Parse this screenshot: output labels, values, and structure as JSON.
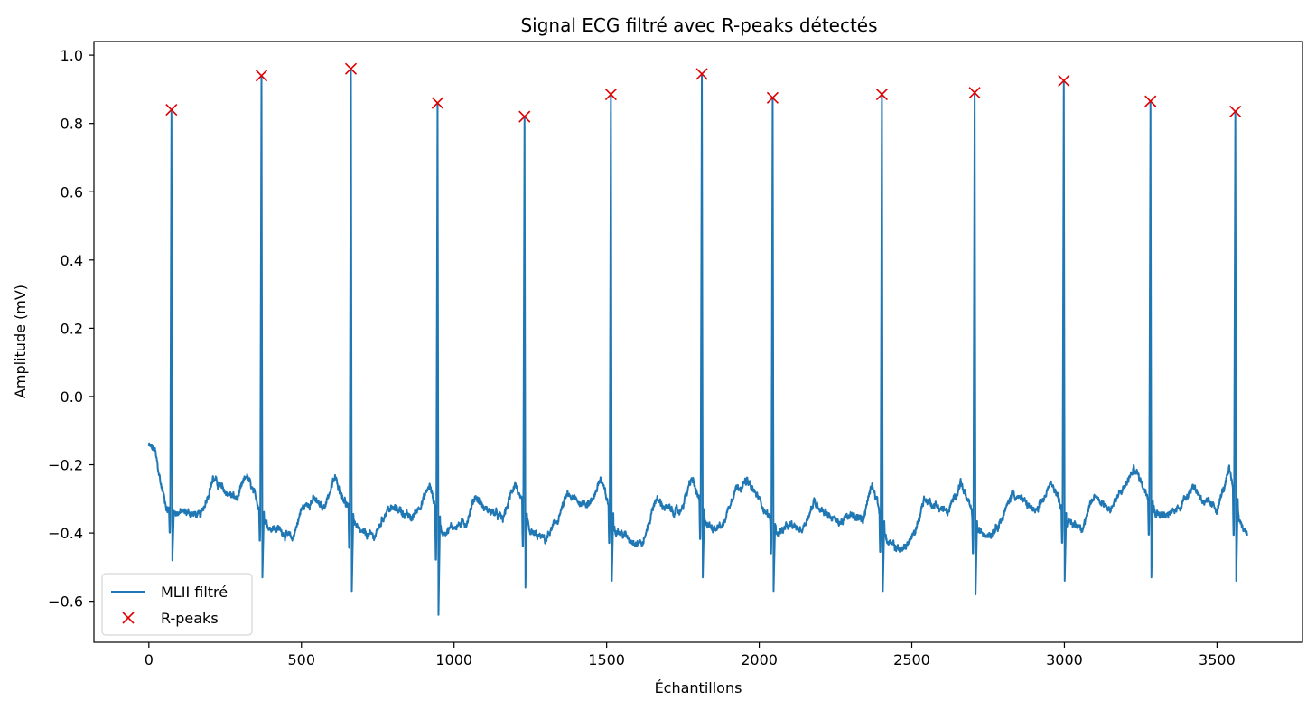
{
  "chart_data": {
    "type": "line",
    "title": "Signal ECG filtré avec R-peaks détectés",
    "xlabel": "Échantillons",
    "ylabel": "Amplitude (mV)",
    "xlim": [
      -180,
      3780
    ],
    "ylim": [
      -0.72,
      1.04
    ],
    "xticks": [
      0,
      500,
      1000,
      1500,
      2000,
      2500,
      3000,
      3500
    ],
    "xtick_labels": [
      "0",
      "500",
      "1000",
      "1500",
      "2000",
      "2500",
      "3000",
      "3500"
    ],
    "yticks": [
      -0.6,
      -0.4,
      -0.2,
      0.0,
      0.2,
      0.4,
      0.6,
      0.8,
      1.0
    ],
    "ytick_labels": [
      "−0.6",
      "−0.4",
      "−0.2",
      "0.0",
      "0.2",
      "0.4",
      "0.6",
      "0.8",
      "1.0"
    ],
    "grid": false,
    "legend_position": "lower-left",
    "num_samples": 3600,
    "series": [
      {
        "name": "MLII filtré",
        "kind": "line",
        "color": "#1f77b4",
        "baseline": [
          [
            0,
            -0.145
          ],
          [
            20,
            -0.16
          ],
          [
            40,
            -0.26
          ],
          [
            60,
            -0.33
          ],
          [
            90,
            -0.34
          ],
          [
            130,
            -0.34
          ],
          [
            170,
            -0.35
          ],
          [
            210,
            -0.24
          ],
          [
            250,
            -0.28
          ],
          [
            290,
            -0.3
          ],
          [
            320,
            -0.23
          ],
          [
            350,
            -0.3
          ],
          [
            390,
            -0.38
          ],
          [
            430,
            -0.39
          ],
          [
            470,
            -0.42
          ],
          [
            500,
            -0.33
          ],
          [
            540,
            -0.3
          ],
          [
            570,
            -0.33
          ],
          [
            610,
            -0.24
          ],
          [
            640,
            -0.3
          ],
          [
            690,
            -0.4
          ],
          [
            740,
            -0.41
          ],
          [
            780,
            -0.33
          ],
          [
            820,
            -0.33
          ],
          [
            860,
            -0.36
          ],
          [
            900,
            -0.3
          ],
          [
            920,
            -0.26
          ],
          [
            960,
            -0.4
          ],
          [
            1000,
            -0.38
          ],
          [
            1040,
            -0.37
          ],
          [
            1070,
            -0.29
          ],
          [
            1100,
            -0.33
          ],
          [
            1130,
            -0.34
          ],
          [
            1160,
            -0.36
          ],
          [
            1200,
            -0.25
          ],
          [
            1250,
            -0.4
          ],
          [
            1300,
            -0.42
          ],
          [
            1340,
            -0.36
          ],
          [
            1370,
            -0.29
          ],
          [
            1410,
            -0.31
          ],
          [
            1450,
            -0.31
          ],
          [
            1480,
            -0.24
          ],
          [
            1530,
            -0.39
          ],
          [
            1580,
            -0.42
          ],
          [
            1620,
            -0.43
          ],
          [
            1660,
            -0.3
          ],
          [
            1700,
            -0.33
          ],
          [
            1740,
            -0.34
          ],
          [
            1780,
            -0.24
          ],
          [
            1830,
            -0.38
          ],
          [
            1880,
            -0.38
          ],
          [
            1920,
            -0.27
          ],
          [
            1960,
            -0.25
          ],
          [
            2000,
            -0.3
          ],
          [
            2060,
            -0.4
          ],
          [
            2100,
            -0.38
          ],
          [
            2140,
            -0.39
          ],
          [
            2180,
            -0.31
          ],
          [
            2220,
            -0.34
          ],
          [
            2260,
            -0.37
          ],
          [
            2300,
            -0.35
          ],
          [
            2340,
            -0.36
          ],
          [
            2370,
            -0.25
          ],
          [
            2420,
            -0.43
          ],
          [
            2470,
            -0.45
          ],
          [
            2510,
            -0.4
          ],
          [
            2540,
            -0.3
          ],
          [
            2580,
            -0.32
          ],
          [
            2620,
            -0.34
          ],
          [
            2660,
            -0.25
          ],
          [
            2720,
            -0.4
          ],
          [
            2760,
            -0.4
          ],
          [
            2800,
            -0.35
          ],
          [
            2830,
            -0.28
          ],
          [
            2870,
            -0.31
          ],
          [
            2910,
            -0.34
          ],
          [
            2960,
            -0.25
          ],
          [
            3010,
            -0.37
          ],
          [
            3060,
            -0.38
          ],
          [
            3100,
            -0.29
          ],
          [
            3150,
            -0.33
          ],
          [
            3200,
            -0.26
          ],
          [
            3230,
            -0.21
          ],
          [
            3300,
            -0.34
          ],
          [
            3340,
            -0.35
          ],
          [
            3380,
            -0.32
          ],
          [
            3420,
            -0.26
          ],
          [
            3460,
            -0.31
          ],
          [
            3500,
            -0.33
          ],
          [
            3540,
            -0.22
          ],
          [
            3580,
            -0.38
          ],
          [
            3600,
            -0.4
          ]
        ],
        "qrs_troughs": [
          -0.48,
          -0.53,
          -0.57,
          -0.64,
          -0.56,
          -0.54,
          -0.53,
          -0.57,
          -0.57,
          -0.58,
          -0.54,
          -0.53,
          -0.54
        ]
      },
      {
        "name": "R-peaks",
        "kind": "marker",
        "marker": "x",
        "color": "#e00000",
        "x": [
          74,
          369,
          662,
          946,
          1231,
          1514,
          1812,
          2044,
          2402,
          2706,
          2998,
          3282,
          3560
        ],
        "y": [
          0.84,
          0.94,
          0.96,
          0.86,
          0.82,
          0.885,
          0.945,
          0.875,
          0.885,
          0.89,
          0.925,
          0.865,
          0.835
        ]
      }
    ]
  }
}
